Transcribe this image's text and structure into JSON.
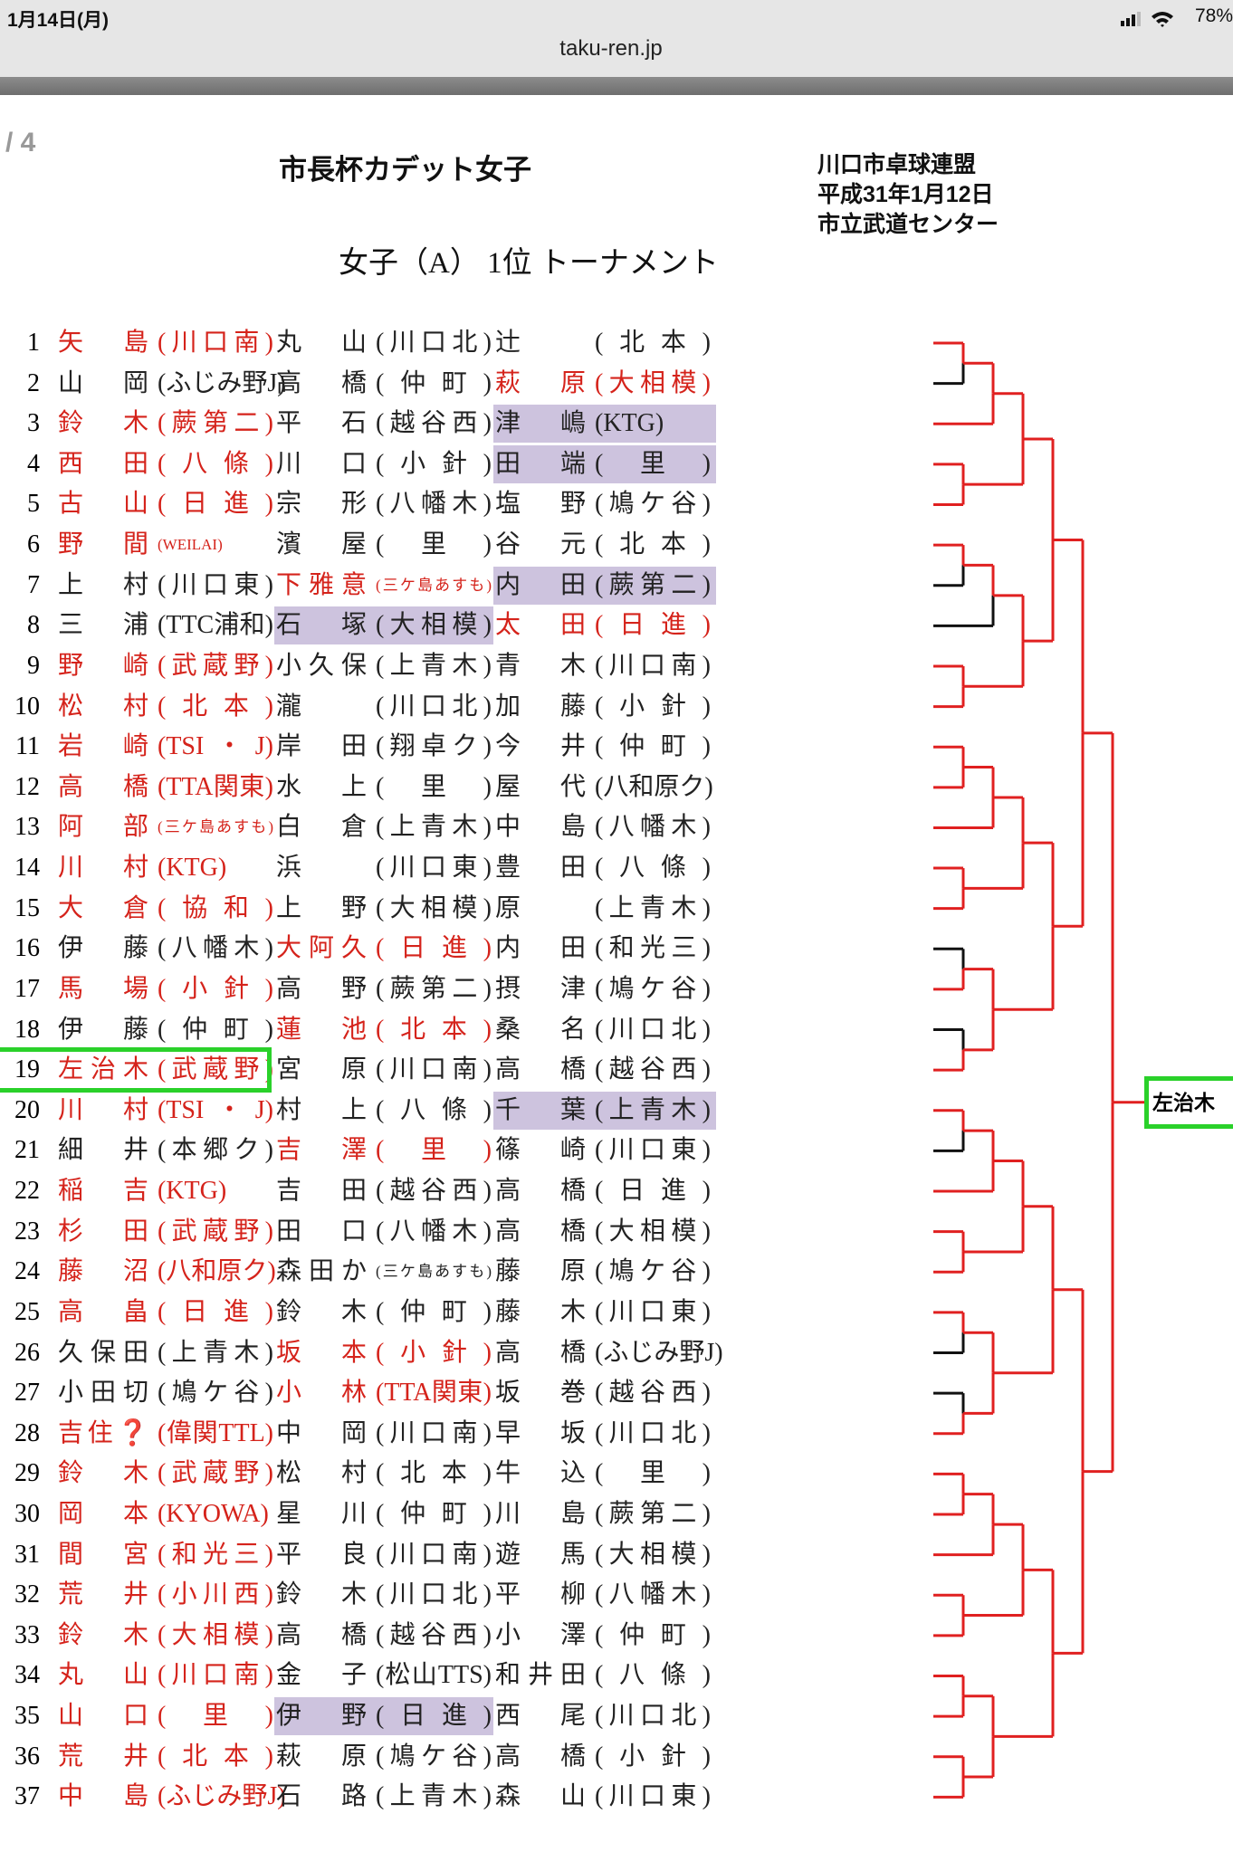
{
  "status": {
    "time": "1月14日(月)",
    "battery": "78%"
  },
  "url": "taku-ren.jp",
  "page_indicator": "/ 4",
  "header": {
    "title": "市長杯カデット女子",
    "org": [
      "川口市卓球連盟",
      "平成31年1月12日",
      "市立武道センター"
    ],
    "subtitle": "女子（A） 1位 トーナメント"
  },
  "table": {
    "boxed_row": 18,
    "rows": [
      {
        "no": 1,
        "cells": [
          {
            "name": "矢島",
            "club": "(川口南)",
            "style": "red"
          },
          {
            "name": "丸山",
            "club": "(川口北)",
            "style": "black"
          },
          {
            "name": "辻",
            "club": "(北本)",
            "style": "black"
          }
        ]
      },
      {
        "no": 2,
        "cells": [
          {
            "name": "山岡",
            "club": "(ふじみ野J)",
            "style": "black"
          },
          {
            "name": "高橋",
            "club": "(仲町)",
            "style": "black"
          },
          {
            "name": "萩原",
            "club": "(大相模)",
            "style": "red"
          }
        ]
      },
      {
        "no": 3,
        "cells": [
          {
            "name": "鈴木",
            "club": "(蕨第二)",
            "style": "red"
          },
          {
            "name": "平石",
            "club": "(越谷西)",
            "style": "black"
          },
          {
            "name": "津嶋",
            "club": "(KTG)",
            "style": "hl"
          }
        ]
      },
      {
        "no": 4,
        "cells": [
          {
            "name": "西田",
            "club": "(八條)",
            "style": "red"
          },
          {
            "name": "川口",
            "club": "(小針)",
            "style": "black"
          },
          {
            "name": "田端",
            "club": "(里)",
            "style": "hl"
          }
        ]
      },
      {
        "no": 5,
        "cells": [
          {
            "name": "古山",
            "club": "(日進)",
            "style": "red"
          },
          {
            "name": "宗形",
            "club": "(八幡木)",
            "style": "black"
          },
          {
            "name": "塩野",
            "club": "(鳩ケ谷)",
            "style": "black"
          }
        ]
      },
      {
        "no": 6,
        "cells": [
          {
            "name": "野間",
            "club": "(WEILAI)",
            "style": "red"
          },
          {
            "name": "濱屋",
            "club": "(里)",
            "style": "black"
          },
          {
            "name": "谷元",
            "club": "(北本)",
            "style": "black"
          }
        ]
      },
      {
        "no": 7,
        "cells": [
          {
            "name": "上村",
            "club": "(川口東)",
            "style": "black"
          },
          {
            "name": "下雅意",
            "club": "(三ケ島あすも)",
            "style": "red"
          },
          {
            "name": "内田",
            "club": "(蕨第二)",
            "style": "hl"
          }
        ]
      },
      {
        "no": 8,
        "cells": [
          {
            "name": "三浦",
            "club": "(TTC浦和)",
            "style": "black"
          },
          {
            "name": "石塚",
            "club": "(大相模)",
            "style": "hl"
          },
          {
            "name": "太田",
            "club": "(日進)",
            "style": "red"
          }
        ]
      },
      {
        "no": 9,
        "cells": [
          {
            "name": "野崎",
            "club": "(武蔵野)",
            "style": "red"
          },
          {
            "name": "小久保",
            "club": "(上青木)",
            "style": "black"
          },
          {
            "name": "青木",
            "club": "(川口南)",
            "style": "black"
          }
        ]
      },
      {
        "no": 10,
        "cells": [
          {
            "name": "松村",
            "club": "(北本)",
            "style": "red"
          },
          {
            "name": "瀧",
            "club": "(川口北)",
            "style": "black"
          },
          {
            "name": "加藤",
            "club": "(小針)",
            "style": "black"
          }
        ]
      },
      {
        "no": 11,
        "cells": [
          {
            "name": "岩崎",
            "club": "(TSI・J)",
            "style": "red"
          },
          {
            "name": "岸田",
            "club": "(翔卓ク)",
            "style": "black"
          },
          {
            "name": "今井",
            "club": "(仲町)",
            "style": "black"
          }
        ]
      },
      {
        "no": 12,
        "cells": [
          {
            "name": "高橋",
            "club": "(TTA関東)",
            "style": "red"
          },
          {
            "name": "水上",
            "club": "(里)",
            "style": "black"
          },
          {
            "name": "屋代",
            "club": "(八和原ク)",
            "style": "black"
          }
        ]
      },
      {
        "no": 13,
        "cells": [
          {
            "name": "阿部",
            "club": "(三ケ島あすも)",
            "style": "red"
          },
          {
            "name": "白倉",
            "club": "(上青木)",
            "style": "black"
          },
          {
            "name": "中島",
            "club": "(八幡木)",
            "style": "black"
          }
        ]
      },
      {
        "no": 14,
        "cells": [
          {
            "name": "川村",
            "club": "(KTG)",
            "style": "red"
          },
          {
            "name": "浜",
            "club": "(川口東)",
            "style": "black"
          },
          {
            "name": "豊田",
            "club": "(八條)",
            "style": "black"
          }
        ]
      },
      {
        "no": 15,
        "cells": [
          {
            "name": "大倉",
            "club": "(協和)",
            "style": "red"
          },
          {
            "name": "上野",
            "club": "(大相模)",
            "style": "black"
          },
          {
            "name": "原",
            "club": "(上青木)",
            "style": "black"
          }
        ]
      },
      {
        "no": 16,
        "cells": [
          {
            "name": "伊藤",
            "club": "(八幡木)",
            "style": "black"
          },
          {
            "name": "大阿久",
            "club": "(日進)",
            "style": "red"
          },
          {
            "name": "内田",
            "club": "(和光三)",
            "style": "black"
          }
        ]
      },
      {
        "no": 17,
        "cells": [
          {
            "name": "馬場",
            "club": "(小針)",
            "style": "red"
          },
          {
            "name": "高野",
            "club": "(蕨第二)",
            "style": "black"
          },
          {
            "name": "摂津",
            "club": "(鳩ケ谷)",
            "style": "black"
          }
        ]
      },
      {
        "no": 18,
        "cells": [
          {
            "name": "伊藤",
            "club": "(仲町)",
            "style": "black"
          },
          {
            "name": "蓮池",
            "club": "(北本)",
            "style": "red"
          },
          {
            "name": "桑名",
            "club": "(川口北)",
            "style": "black"
          }
        ]
      },
      {
        "no": 19,
        "cells": [
          {
            "name": "左治木",
            "club": "(武蔵野)",
            "style": "red"
          },
          {
            "name": "宮原",
            "club": "(川口南)",
            "style": "black"
          },
          {
            "name": "高橋",
            "club": "(越谷西)",
            "style": "black"
          }
        ]
      },
      {
        "no": 20,
        "cells": [
          {
            "name": "川村",
            "club": "(TSI・J)",
            "style": "red"
          },
          {
            "name": "村上",
            "club": "(八條)",
            "style": "black"
          },
          {
            "name": "千葉",
            "club": "(上青木)",
            "style": "hl"
          }
        ]
      },
      {
        "no": 21,
        "cells": [
          {
            "name": "細井",
            "club": "(本郷ク)",
            "style": "black"
          },
          {
            "name": "吉澤",
            "club": "(里)",
            "style": "red"
          },
          {
            "name": "篠崎",
            "club": "(川口東)",
            "style": "black"
          }
        ]
      },
      {
        "no": 22,
        "cells": [
          {
            "name": "稲吉",
            "club": "(KTG)",
            "style": "red"
          },
          {
            "name": "吉田",
            "club": "(越谷西)",
            "style": "black"
          },
          {
            "name": "高橋",
            "club": "(日進)",
            "style": "black"
          }
        ]
      },
      {
        "no": 23,
        "cells": [
          {
            "name": "杉田",
            "club": "(武蔵野)",
            "style": "red"
          },
          {
            "name": "田口",
            "club": "(八幡木)",
            "style": "black"
          },
          {
            "name": "高橋",
            "club": "(大相模)",
            "style": "black"
          }
        ]
      },
      {
        "no": 24,
        "cells": [
          {
            "name": "藤沼",
            "club": "(八和原ク)",
            "style": "red"
          },
          {
            "name": "森田か",
            "club": "(三ケ島あすも)",
            "style": "black"
          },
          {
            "name": "藤原",
            "club": "(鳩ケ谷)",
            "style": "black"
          }
        ]
      },
      {
        "no": 25,
        "cells": [
          {
            "name": "高畠",
            "club": "(日進)",
            "style": "red"
          },
          {
            "name": "鈴木",
            "club": "(仲町)",
            "style": "black"
          },
          {
            "name": "藤木",
            "club": "(川口東)",
            "style": "black"
          }
        ]
      },
      {
        "no": 26,
        "cells": [
          {
            "name": "久保田",
            "club": "(上青木)",
            "style": "black"
          },
          {
            "name": "坂本",
            "club": "(小針)",
            "style": "red"
          },
          {
            "name": "高橋",
            "club": "(ふじみ野J)",
            "style": "black"
          }
        ]
      },
      {
        "no": 27,
        "cells": [
          {
            "name": "小田切",
            "club": "(鳩ケ谷)",
            "style": "black"
          },
          {
            "name": "小林",
            "club": "(TTA関東)",
            "style": "red"
          },
          {
            "name": "坂巻",
            "club": "(越谷西)",
            "style": "black"
          }
        ]
      },
      {
        "no": 28,
        "cells": [
          {
            "name": "吉住❓",
            "club": "(偉関TTL)",
            "style": "red"
          },
          {
            "name": "中岡",
            "club": "(川口南)",
            "style": "black"
          },
          {
            "name": "早坂",
            "club": "(川口北)",
            "style": "black"
          }
        ]
      },
      {
        "no": 29,
        "cells": [
          {
            "name": "鈴木",
            "club": "(武蔵野)",
            "style": "red"
          },
          {
            "name": "松村",
            "club": "(北本)",
            "style": "black"
          },
          {
            "name": "牛込",
            "club": "(里)",
            "style": "black"
          }
        ]
      },
      {
        "no": 30,
        "cells": [
          {
            "name": "岡本",
            "club": "(KYOWA)",
            "style": "red"
          },
          {
            "name": "星川",
            "club": "(仲町)",
            "style": "black"
          },
          {
            "name": "川島",
            "club": "(蕨第二)",
            "style": "black"
          }
        ]
      },
      {
        "no": 31,
        "cells": [
          {
            "name": "間宮",
            "club": "(和光三)",
            "style": "red"
          },
          {
            "name": "平良",
            "club": "(川口南)",
            "style": "black"
          },
          {
            "name": "遊馬",
            "club": "(大相模)",
            "style": "black"
          }
        ]
      },
      {
        "no": 32,
        "cells": [
          {
            "name": "荒井",
            "club": "(小川西)",
            "style": "red"
          },
          {
            "name": "鈴木",
            "club": "(川口北)",
            "style": "black"
          },
          {
            "name": "平柳",
            "club": "(八幡木)",
            "style": "black"
          }
        ]
      },
      {
        "no": 33,
        "cells": [
          {
            "name": "鈴木",
            "club": "(大相模)",
            "style": "red"
          },
          {
            "name": "高橋",
            "club": "(越谷西)",
            "style": "black"
          },
          {
            "name": "小澤",
            "club": "(仲町)",
            "style": "black"
          }
        ]
      },
      {
        "no": 34,
        "cells": [
          {
            "name": "丸山",
            "club": "(川口南)",
            "style": "red"
          },
          {
            "name": "金子",
            "club": "(松山TTS)",
            "style": "black"
          },
          {
            "name": "和井田",
            "club": "(八條)",
            "style": "black"
          }
        ]
      },
      {
        "no": 35,
        "cells": [
          {
            "name": "山口",
            "club": "(里)",
            "style": "red"
          },
          {
            "name": "伊野",
            "club": "(日進)",
            "style": "hl"
          },
          {
            "name": "西尾",
            "club": "(川口北)",
            "style": "black"
          }
        ]
      },
      {
        "no": 36,
        "cells": [
          {
            "name": "荒井",
            "club": "(北本)",
            "style": "red"
          },
          {
            "name": "萩原",
            "club": "(鳩ケ谷)",
            "style": "black"
          },
          {
            "name": "高橋",
            "club": "(小針)",
            "style": "black"
          }
        ]
      },
      {
        "no": 37,
        "cells": [
          {
            "name": "中島",
            "club": "(ふじみ野J)",
            "style": "red"
          },
          {
            "name": "石路",
            "club": "(上青木)",
            "style": "black"
          },
          {
            "name": "森山",
            "club": "(川口東)",
            "style": "black"
          }
        ]
      }
    ]
  },
  "bracket": {
    "winner": "左治木"
  }
}
